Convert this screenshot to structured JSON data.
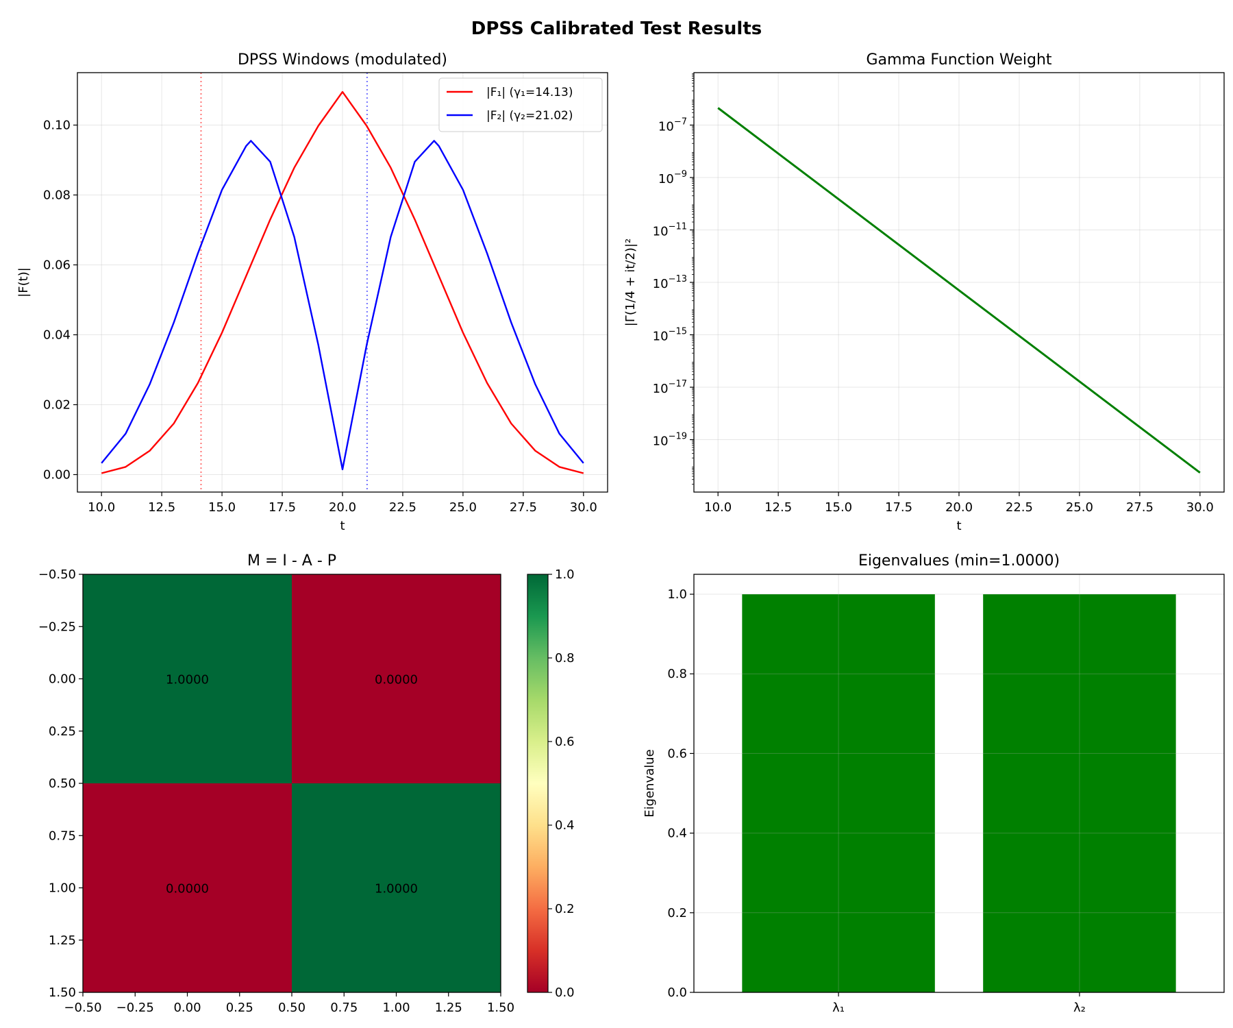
{
  "figure": {
    "suptitle": "DPSS Calibrated Test Results"
  },
  "chart_data": [
    {
      "type": "line",
      "title": "DPSS Windows (modulated)",
      "xlabel": "t",
      "ylabel": "|F(t)|",
      "xlim": [
        9.0,
        31.0
      ],
      "ylim": [
        -0.005,
        0.115
      ],
      "xticks": [
        "10.0",
        "12.5",
        "15.0",
        "17.5",
        "20.0",
        "22.5",
        "25.0",
        "27.5",
        "30.0"
      ],
      "yticks": [
        "0.00",
        "0.02",
        "0.04",
        "0.06",
        "0.08",
        "0.10"
      ],
      "grid": true,
      "legend": "upper right",
      "series": [
        {
          "name": "|F₁| (γ₁=14.13)",
          "color": "#ff0000",
          "x": [
            10,
            11,
            12,
            13,
            14,
            15,
            16,
            17,
            18,
            19,
            20,
            21,
            22,
            23,
            24,
            25,
            26,
            27,
            28,
            29,
            30
          ],
          "y": [
            0.0004,
            0.0022,
            0.0068,
            0.0146,
            0.0262,
            0.0406,
            0.0568,
            0.073,
            0.0878,
            0.0998,
            0.1095,
            0.0998,
            0.0878,
            0.073,
            0.0568,
            0.0406,
            0.0262,
            0.0146,
            0.0068,
            0.0022,
            0.0004
          ]
        },
        {
          "name": "|F₂| (γ₂=21.02)",
          "color": "#0000ff",
          "x": [
            10,
            11,
            12,
            13,
            14,
            15,
            16,
            16.2,
            17,
            18,
            19,
            20,
            21,
            22,
            23,
            23.8,
            24,
            25,
            26,
            27,
            28,
            29,
            30
          ],
          "y": [
            0.0033,
            0.0117,
            0.0258,
            0.0435,
            0.0633,
            0.0815,
            0.094,
            0.0955,
            0.0895,
            0.068,
            0.037,
            0.0015,
            0.037,
            0.068,
            0.0895,
            0.0955,
            0.094,
            0.0815,
            0.0633,
            0.0435,
            0.0258,
            0.0117,
            0.0033
          ]
        }
      ],
      "vlines": [
        {
          "x": 14.13,
          "color": "#ff0000"
        },
        {
          "x": 21.02,
          "color": "#0000ff"
        }
      ]
    },
    {
      "type": "line",
      "title": "Gamma Function Weight",
      "xlabel": "t",
      "ylabel": "|Γ(1/4 + it/2)|²",
      "xlim": [
        9.0,
        31.0
      ],
      "ylog": true,
      "ylim": [
        1e-21,
        1e-05
      ],
      "xticks": [
        "10.0",
        "12.5",
        "15.0",
        "17.5",
        "20.0",
        "22.5",
        "25.0",
        "27.5",
        "30.0"
      ],
      "yticks": [
        {
          "base": "10",
          "exp": "−7",
          "value": 1e-07
        },
        {
          "base": "10",
          "exp": "−9",
          "value": 1e-09
        },
        {
          "base": "10",
          "exp": "−11",
          "value": 1e-11
        },
        {
          "base": "10",
          "exp": "−13",
          "value": 1e-13
        },
        {
          "base": "10",
          "exp": "−15",
          "value": 1e-15
        },
        {
          "base": "10",
          "exp": "−17",
          "value": 1e-17
        },
        {
          "base": "10",
          "exp": "−19",
          "value": 1e-19
        }
      ],
      "grid": true,
      "series": [
        {
          "color": "#007f00",
          "x": [
            10,
            30
          ],
          "y": [
            4.5e-07,
            5.5e-21
          ]
        }
      ]
    },
    {
      "type": "heatmap",
      "title": "M = I - A - P",
      "matrix": [
        [
          1.0,
          0.0
        ],
        [
          0.0,
          1.0
        ]
      ],
      "cell_labels": [
        [
          "1.0000",
          "0.0000"
        ],
        [
          "0.0000",
          "1.0000"
        ]
      ],
      "xlim": [
        -0.5,
        1.5
      ],
      "ylim": [
        1.5,
        -0.5
      ],
      "xticks": [
        "−0.50",
        "−0.25",
        "0.00",
        "0.25",
        "0.50",
        "0.75",
        "1.00",
        "1.25",
        "1.50"
      ],
      "yticks": [
        "−0.50",
        "−0.25",
        "0.00",
        "0.25",
        "0.50",
        "0.75",
        "1.00",
        "1.25",
        "1.50"
      ],
      "colormap": "RdYlGn",
      "colorbar": {
        "range": [
          0.0,
          1.0
        ],
        "ticks": [
          "0.0",
          "0.2",
          "0.4",
          "0.6",
          "0.8",
          "1.0"
        ]
      }
    },
    {
      "type": "bar",
      "title": "Eigenvalues (min=1.0000)",
      "ylabel": "Eigenvalue",
      "categories": [
        "λ₁",
        "λ₂"
      ],
      "values": [
        1.0,
        1.0
      ],
      "color": "#008000",
      "ylim": [
        0.0,
        1.05
      ],
      "yticks": [
        "0.0",
        "0.2",
        "0.4",
        "0.6",
        "0.8",
        "1.0"
      ],
      "grid": true
    }
  ]
}
